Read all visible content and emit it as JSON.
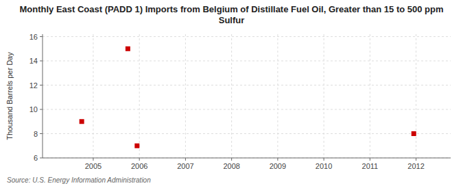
{
  "chart_data": {
    "type": "scatter",
    "title": "Monthly East Coast (PADD 1) Imports from Belgium of Distillate Fuel Oil, Greater than 15 to 500 ppm Sulfur",
    "y_label": "Thousand Barrels per Day",
    "annotations": [
      "Source: U.S. Energy Information Administration"
    ],
    "x": [
      2004.75,
      2005.75,
      2005.95,
      2011.95
    ],
    "values": [
      9.0,
      15.0,
      7.0,
      8.0
    ],
    "color": "#cc0000",
    "marker": "square",
    "xlim": [
      2003.9,
      2012.75
    ],
    "ylim": [
      6,
      16.2
    ],
    "xticks": [
      2005,
      2006,
      2007,
      2008,
      2009,
      2010,
      2011,
      2012
    ],
    "yticks": [
      6,
      8,
      10,
      12,
      14,
      16
    ],
    "grid": true
  }
}
